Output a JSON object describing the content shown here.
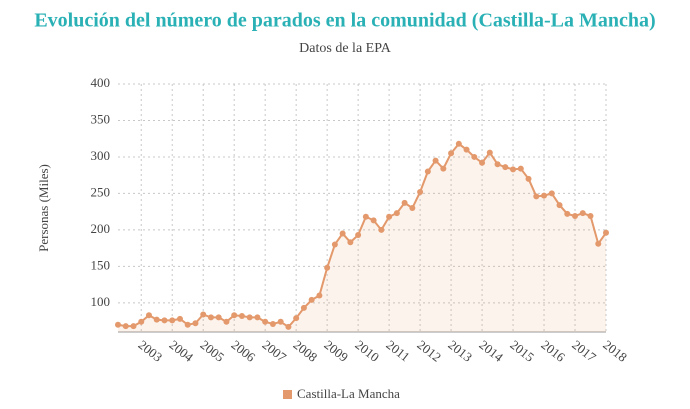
{
  "chart_data": {
    "type": "line",
    "title": "Evolución del número de parados en la comunidad (Castilla-La Mancha)",
    "subtitle": "Datos de la EPA",
    "y_label": "Personas (Miles)",
    "x": [
      2002.25,
      2002.5,
      2002.75,
      2003,
      2003.25,
      2003.5,
      2003.75,
      2004,
      2004.25,
      2004.5,
      2004.75,
      2005,
      2005.25,
      2005.5,
      2005.75,
      2006,
      2006.25,
      2006.5,
      2006.75,
      2007,
      2007.25,
      2007.5,
      2007.75,
      2008,
      2008.25,
      2008.5,
      2008.75,
      2009,
      2009.25,
      2009.5,
      2009.75,
      2010,
      2010.25,
      2010.5,
      2010.75,
      2011,
      2011.25,
      2011.5,
      2011.75,
      2012,
      2012.25,
      2012.5,
      2012.75,
      2013,
      2013.25,
      2013.5,
      2013.75,
      2014,
      2014.25,
      2014.5,
      2014.75,
      2015,
      2015.25,
      2015.5,
      2015.75,
      2016,
      2016.25,
      2016.5,
      2016.75,
      2017,
      2017.25,
      2017.5,
      2017.75,
      2018
    ],
    "series": [
      {
        "name": "Castilla-La Mancha",
        "color": "#e3996b",
        "values": [
          70,
          68,
          68,
          74,
          83,
          77,
          76,
          76,
          78,
          70,
          72,
          84,
          80,
          80,
          74,
          83,
          82,
          80,
          80,
          74,
          71,
          74,
          67,
          79,
          93,
          104,
          110,
          148,
          180,
          195,
          183,
          193,
          218,
          213,
          200,
          218,
          223,
          237,
          230,
          252,
          280,
          295,
          284,
          305,
          318,
          310,
          300,
          292,
          306,
          290,
          286,
          283,
          284,
          270,
          246,
          247,
          250,
          234,
          222,
          219,
          223,
          219,
          181,
          196
        ]
      }
    ],
    "xlim": [
      2002.25,
      2018
    ],
    "xticks": [
      2003,
      2004,
      2005,
      2006,
      2007,
      2008,
      2009,
      2010,
      2011,
      2012,
      2013,
      2014,
      2015,
      2016,
      2017,
      2018
    ],
    "ylim": [
      60,
      400
    ],
    "yticks": [
      100,
      150,
      200,
      250,
      300,
      350,
      400
    ],
    "grid": true,
    "legend": "bottom"
  }
}
